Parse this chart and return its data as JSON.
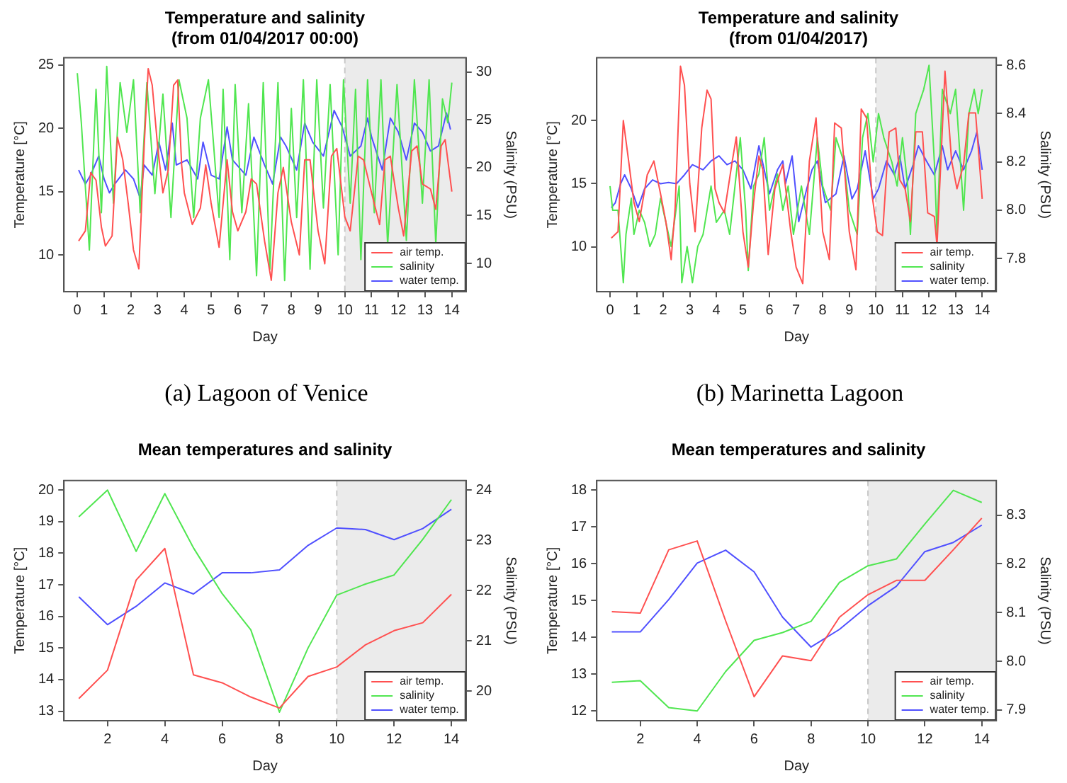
{
  "chart_data": [
    {
      "type": "line",
      "title": "Temperature and salinity",
      "subtitle": "(from 01/04/2017 00:00)",
      "xlabel": "Day",
      "ylabel": "Temperature [°C]",
      "y2label": "Salinity (PSU)",
      "xlim": [
        -0.5,
        14.53
      ],
      "xticks": [
        0,
        1,
        2,
        3,
        4,
        5,
        6,
        7,
        8,
        9,
        10,
        11,
        12,
        13,
        14
      ],
      "ylim": [
        7.1,
        25.56
      ],
      "yticks": [
        10,
        15,
        20,
        25
      ],
      "y2lim": [
        7.04,
        31.5
      ],
      "y2ticks": [
        10,
        15,
        20,
        25,
        30
      ],
      "legend": "bottom right",
      "annotations": [
        "(a) Lagoon of Venice"
      ],
      "bands": [
        {
          "axis": "x",
          "from": 10,
          "to": 14.53,
          "color": "#ebebeb"
        }
      ],
      "ref_lines": [
        {
          "axis": "x",
          "value": 10,
          "color": "#c8c8c8",
          "line_style": "dashed"
        }
      ],
      "series": [
        {
          "name": "air temp.",
          "color": "#ff5050",
          "x": [
            0.05,
            0.3,
            0.5,
            0.7,
            0.9,
            1.05,
            1.3,
            1.5,
            1.7,
            1.9,
            2.1,
            2.3,
            2.5,
            2.65,
            2.8,
            3.0,
            3.2,
            3.4,
            3.6,
            3.75,
            3.9,
            4.0,
            4.3,
            4.6,
            4.8,
            5.0,
            5.3,
            5.6,
            5.8,
            6.0,
            6.3,
            6.5,
            6.7,
            7.0,
            7.25,
            7.5,
            7.7,
            8.0,
            8.3,
            8.5,
            8.7,
            9.0,
            9.25,
            9.5,
            9.7,
            10.0,
            10.2,
            10.5,
            10.7,
            11.0,
            11.3,
            11.5,
            11.7,
            12.0,
            12.2,
            12.5,
            12.7,
            12.9,
            13.2,
            13.4,
            13.6,
            13.75,
            14.0
          ],
          "values": [
            11.1,
            11.9,
            16.5,
            15.9,
            12.2,
            10.7,
            11.5,
            19.3,
            17.5,
            14.1,
            10.4,
            8.9,
            18.6,
            24.7,
            23.4,
            18.6,
            14.9,
            16.7,
            23.4,
            23.8,
            17.1,
            14.9,
            12.4,
            13.7,
            17.1,
            14.1,
            10.6,
            17.5,
            13.4,
            11.9,
            13.4,
            16.0,
            15.6,
            11.1,
            8.0,
            14.9,
            16.9,
            12.6,
            10.0,
            17.5,
            17.5,
            11.9,
            9.3,
            17.8,
            18.4,
            13.0,
            11.9,
            17.8,
            17.5,
            14.9,
            12.4,
            17.5,
            17.8,
            13.7,
            11.5,
            18.2,
            18.6,
            15.6,
            15.2,
            13.6,
            18.6,
            19.1,
            15.0
          ]
        },
        {
          "name": "salinity",
          "color": "#50e650",
          "axis": "y2",
          "x": [
            0.0,
            0.15,
            0.45,
            0.7,
            0.9,
            1.1,
            1.35,
            1.6,
            1.85,
            2.1,
            2.35,
            2.6,
            2.9,
            3.2,
            3.5,
            3.8,
            4.1,
            4.35,
            4.6,
            4.9,
            5.1,
            5.3,
            5.45,
            5.7,
            5.9,
            6.15,
            6.4,
            6.7,
            6.95,
            7.2,
            7.5,
            7.75,
            8.0,
            8.2,
            8.45,
            8.7,
            8.95,
            9.2,
            9.45,
            9.75,
            9.95,
            10.2,
            10.4,
            10.6,
            10.85,
            11.1,
            11.35,
            11.6,
            11.95,
            12.3,
            12.6,
            12.9,
            13.15,
            13.4,
            13.65,
            13.85,
            14.0
          ],
          "values": [
            29.9,
            24.7,
            11.4,
            28.2,
            15.3,
            30.6,
            16.3,
            28.9,
            23.7,
            29.2,
            15.3,
            28.9,
            17.3,
            27.7,
            14.8,
            29.2,
            25.2,
            14.8,
            25.2,
            29.2,
            22.2,
            14.8,
            28.2,
            10.4,
            28.7,
            15.3,
            26.7,
            8.7,
            28.9,
            9.4,
            28.9,
            8.2,
            26.2,
            14.8,
            29.2,
            9.4,
            29.2,
            15.8,
            28.7,
            10.9,
            29.2,
            16.3,
            28.2,
            10.4,
            29.2,
            15.3,
            29.2,
            11.9,
            28.7,
            12.4,
            29.2,
            16.3,
            29.2,
            12.0,
            27.2,
            24.7,
            28.9
          ]
        },
        {
          "name": "water temp.",
          "color": "#5050ff",
          "x": [
            0.05,
            0.3,
            0.5,
            0.8,
            1.0,
            1.2,
            1.4,
            1.8,
            2.1,
            2.35,
            2.5,
            2.8,
            3.05,
            3.3,
            3.55,
            3.7,
            4.1,
            4.5,
            4.7,
            5.0,
            5.3,
            5.6,
            5.8,
            6.3,
            6.6,
            7.0,
            7.3,
            7.6,
            7.8,
            8.2,
            8.5,
            8.8,
            9.2,
            9.6,
            9.9,
            10.2,
            10.6,
            10.85,
            11.0,
            11.4,
            11.7,
            12.0,
            12.3,
            12.6,
            12.9,
            13.2,
            13.5,
            13.8,
            13.95
          ],
          "values": [
            16.7,
            15.6,
            16.3,
            17.8,
            16.0,
            14.9,
            15.6,
            16.7,
            16.0,
            14.5,
            17.1,
            16.3,
            18.9,
            16.7,
            20.4,
            17.1,
            17.5,
            16.0,
            18.9,
            16.3,
            16.0,
            20.1,
            17.5,
            16.3,
            19.3,
            17.1,
            15.6,
            19.3,
            18.6,
            16.7,
            20.4,
            18.9,
            17.8,
            21.4,
            20.1,
            17.8,
            18.6,
            20.8,
            19.3,
            16.7,
            20.8,
            19.7,
            17.5,
            20.4,
            19.7,
            18.2,
            18.6,
            21.2,
            19.9
          ]
        }
      ]
    },
    {
      "type": "line",
      "title": "Temperature and salinity",
      "subtitle": "(from 01/04/2017)",
      "xlabel": "Day",
      "ylabel": "Temperature [°C]",
      "y2label": "Salinity (PSU)",
      "xlim": [
        -0.5,
        14.53
      ],
      "xticks": [
        0,
        1,
        2,
        3,
        4,
        5,
        6,
        7,
        8,
        9,
        10,
        11,
        12,
        13,
        14
      ],
      "ylim": [
        6.46,
        24.96
      ],
      "yticks": [
        10,
        15,
        20
      ],
      "y2lim": [
        7.663,
        8.631
      ],
      "y2ticks": [
        7.8,
        {
          "value": 8,
          "label": "8.0"
        },
        8.2,
        8.4,
        8.6
      ],
      "legend": "bottom right",
      "annotations": [
        "(b) Marinetta Lagoon"
      ],
      "bands": [
        {
          "axis": "x",
          "from": 10,
          "to": 14.53,
          "color": "#ebebeb"
        }
      ],
      "ref_lines": [
        {
          "axis": "x",
          "value": 10,
          "color": "#c8c8c8",
          "line_style": "dashed"
        }
      ],
      "series": [
        {
          "name": "air temp.",
          "color": "#ff5050",
          "x": [
            0.05,
            0.3,
            0.5,
            0.7,
            0.9,
            1.1,
            1.4,
            1.65,
            1.9,
            2.1,
            2.3,
            2.45,
            2.65,
            2.8,
            3.0,
            3.2,
            3.45,
            3.65,
            3.8,
            3.95,
            4.1,
            4.3,
            4.6,
            4.75,
            5.0,
            5.2,
            5.4,
            5.6,
            5.75,
            5.95,
            6.2,
            6.5,
            6.8,
            7.0,
            7.25,
            7.5,
            7.75,
            8.0,
            8.25,
            8.45,
            8.7,
            9.0,
            9.25,
            9.45,
            9.65,
            9.85,
            10.05,
            10.25,
            10.5,
            10.75,
            10.9,
            11.1,
            11.3,
            11.5,
            11.75,
            11.95,
            12.2,
            12.3,
            12.6,
            12.85,
            13.05,
            13.3,
            13.5,
            13.75,
            14.0
          ],
          "values": [
            10.7,
            11.2,
            20.0,
            16.8,
            13.5,
            12.0,
            15.7,
            16.8,
            14.2,
            12.0,
            9.0,
            13.1,
            24.3,
            22.8,
            15.0,
            11.2,
            19.4,
            22.4,
            21.7,
            14.6,
            13.5,
            12.7,
            16.8,
            18.7,
            11.2,
            8.4,
            13.5,
            17.2,
            16.1,
            9.4,
            14.6,
            16.5,
            11.2,
            8.4,
            7.1,
            16.8,
            20.2,
            11.2,
            9.0,
            19.8,
            19.4,
            11.2,
            8.2,
            20.9,
            20.2,
            14.2,
            11.2,
            10.9,
            19.1,
            19.4,
            15.3,
            14.6,
            12.0,
            19.1,
            19.1,
            12.7,
            12.4,
            10.1,
            23.9,
            16.8,
            14.6,
            16.5,
            20.6,
            20.6,
            13.8
          ]
        },
        {
          "name": "salinity",
          "color": "#50e650",
          "axis": "y2",
          "x": [
            0.0,
            0.1,
            0.3,
            0.4,
            0.5,
            0.6,
            0.8,
            0.9,
            1.1,
            1.3,
            1.5,
            1.7,
            1.9,
            2.1,
            2.3,
            2.6,
            2.7,
            2.9,
            3.1,
            3.3,
            3.5,
            3.8,
            4.0,
            4.3,
            4.5,
            4.7,
            4.9,
            5.1,
            5.2,
            5.4,
            5.6,
            5.8,
            6.0,
            6.3,
            6.5,
            6.7,
            6.9,
            7.2,
            7.5,
            7.8,
            8.0,
            8.3,
            8.5,
            8.8,
            9.0,
            9.3,
            9.5,
            9.7,
            9.9,
            10.1,
            10.3,
            10.6,
            10.8,
            11.0,
            11.2,
            11.3,
            11.5,
            11.8,
            12.0,
            12.2,
            12.3,
            12.5,
            12.8,
            13.0,
            13.3,
            13.5,
            13.7,
            13.85,
            14.0
          ],
          "values": [
            8.1,
            8.0,
            8.0,
            7.85,
            7.7,
            7.9,
            8.05,
            7.9,
            8.0,
            7.95,
            7.85,
            7.9,
            8.05,
            7.95,
            7.85,
            8.1,
            7.7,
            7.85,
            7.7,
            7.85,
            7.9,
            8.1,
            7.95,
            8.0,
            7.9,
            8.1,
            8.3,
            8.0,
            7.75,
            8.1,
            8.15,
            8.3,
            8.0,
            8.15,
            8.0,
            8.1,
            7.9,
            8.1,
            7.9,
            8.3,
            8.1,
            8.0,
            8.3,
            8.2,
            8.0,
            7.9,
            8.3,
            8.4,
            8.2,
            8.4,
            8.3,
            8.2,
            8.1,
            8.3,
            8.1,
            7.9,
            8.4,
            8.5,
            8.6,
            8.2,
            7.9,
            8.5,
            8.4,
            8.5,
            8.0,
            8.4,
            8.5,
            8.4,
            8.5
          ]
        },
        {
          "name": "water temp.",
          "color": "#5050ff",
          "x": [
            0.05,
            0.2,
            0.4,
            0.55,
            0.8,
            1.05,
            1.3,
            1.6,
            1.9,
            2.2,
            2.5,
            2.8,
            3.1,
            3.5,
            3.8,
            4.1,
            4.4,
            4.7,
            5.0,
            5.3,
            5.6,
            5.8,
            6.0,
            6.3,
            6.5,
            6.6,
            6.85,
            7.1,
            7.4,
            7.6,
            7.8,
            8.1,
            8.5,
            8.8,
            9.1,
            9.3,
            9.6,
            9.9,
            10.1,
            10.4,
            10.7,
            10.9,
            11.1,
            11.4,
            11.6,
            11.9,
            12.2,
            12.5,
            12.7,
            13.0,
            13.3,
            13.6,
            13.8,
            14.0
          ],
          "values": [
            13.1,
            13.5,
            15.0,
            15.7,
            14.6,
            13.1,
            14.6,
            15.3,
            15.0,
            15.1,
            15.0,
            15.7,
            16.5,
            16.1,
            16.8,
            17.2,
            16.5,
            16.8,
            16.1,
            14.6,
            18.0,
            16.1,
            14.2,
            16.1,
            16.8,
            15.0,
            17.2,
            12.0,
            14.6,
            16.1,
            16.8,
            13.5,
            14.2,
            17.2,
            13.8,
            14.6,
            17.6,
            13.8,
            14.6,
            16.8,
            15.7,
            17.2,
            14.6,
            16.5,
            18.0,
            16.8,
            15.7,
            18.0,
            16.1,
            17.6,
            16.1,
            17.6,
            19.1,
            16.1
          ]
        }
      ]
    },
    {
      "type": "line",
      "title": "Mean temperatures and salinity",
      "xlabel": "Day",
      "ylabel": "Temperature [°C]",
      "y2label": "Salinity (PSU)",
      "xlim": [
        0.48,
        14.51
      ],
      "xticks": [
        2,
        4,
        6,
        8,
        10,
        12,
        14
      ],
      "ylim": [
        12.7,
        20.3
      ],
      "yticks": [
        13,
        14,
        15,
        16,
        17,
        18,
        19,
        20
      ],
      "y2lim": [
        19.41,
        24.19
      ],
      "y2ticks": [
        20,
        21,
        22,
        23,
        24
      ],
      "legend": "bottom right",
      "bands": [
        {
          "axis": "x",
          "from": 10,
          "to": 14.51,
          "color": "#ebebeb"
        }
      ],
      "ref_lines": [
        {
          "axis": "x",
          "value": 10,
          "color": "#c8c8c8",
          "line_style": "dashed"
        }
      ],
      "series": [
        {
          "name": "air temp.",
          "color": "#ff5050",
          "x": [
            1,
            2,
            3,
            4,
            5,
            6,
            7,
            8,
            9,
            10,
            11,
            12,
            13,
            14
          ],
          "values": [
            13.4,
            14.3,
            17.15,
            18.15,
            14.15,
            13.9,
            13.45,
            13.1,
            14.1,
            14.4,
            15.1,
            15.55,
            15.8,
            16.7
          ]
        },
        {
          "name": "salinity",
          "color": "#50e650",
          "axis": "y2",
          "x": [
            1,
            2,
            3,
            4,
            5,
            6,
            7,
            8,
            9,
            10,
            11,
            12,
            13,
            14
          ],
          "values": [
            23.47,
            24.0,
            22.78,
            23.93,
            22.85,
            21.94,
            21.22,
            19.58,
            20.86,
            21.91,
            22.13,
            22.31,
            23.02,
            23.81
          ]
        },
        {
          "name": "water temp.",
          "color": "#5050ff",
          "x": [
            1,
            2,
            3,
            4,
            5,
            6,
            7,
            8,
            9,
            10,
            11,
            12,
            13,
            14
          ],
          "values": [
            16.62,
            15.74,
            16.32,
            17.06,
            16.71,
            17.38,
            17.38,
            17.47,
            18.25,
            18.8,
            18.75,
            18.43,
            18.78,
            19.39
          ]
        }
      ]
    },
    {
      "type": "line",
      "title": "Mean temperatures and salinity",
      "xlabel": "Day",
      "ylabel": "Temperature [°C]",
      "y2label": "Salinity (PSU)",
      "xlim": [
        0.47,
        14.51
      ],
      "xticks": [
        2,
        4,
        6,
        8,
        10,
        12,
        14
      ],
      "ylim": [
        11.74,
        18.26
      ],
      "yticks": [
        12,
        13,
        14,
        15,
        16,
        17,
        18
      ],
      "y2lim": [
        7.878,
        8.371
      ],
      "y2ticks": [
        7.9,
        {
          "value": 8,
          "label": "8.0"
        },
        8.1,
        8.2,
        8.3
      ],
      "legend": "bottom right",
      "bands": [
        {
          "axis": "x",
          "from": 10,
          "to": 14.51,
          "color": "#ebebeb"
        }
      ],
      "ref_lines": [
        {
          "axis": "x",
          "value": 10,
          "color": "#c8c8c8",
          "line_style": "dashed"
        }
      ],
      "series": [
        {
          "name": "air temp.",
          "color": "#ff5050",
          "x": [
            1,
            2,
            3,
            4,
            5,
            6,
            7,
            8,
            9,
            10,
            11,
            12,
            13,
            14
          ],
          "values": [
            14.7,
            14.66,
            16.38,
            16.62,
            14.45,
            12.39,
            13.5,
            13.37,
            14.55,
            15.16,
            15.55,
            15.55,
            16.38,
            17.24
          ]
        },
        {
          "name": "salinity",
          "color": "#50e650",
          "axis": "y2",
          "x": [
            1,
            2,
            3,
            4,
            5,
            6,
            7,
            8,
            9,
            10,
            11,
            12,
            13,
            14
          ],
          "values": [
            7.957,
            7.96,
            7.905,
            7.898,
            7.979,
            8.043,
            8.059,
            8.082,
            8.162,
            8.196,
            8.21,
            8.282,
            8.351,
            8.326
          ]
        },
        {
          "name": "water temp.",
          "color": "#5050ff",
          "x": [
            1,
            2,
            3,
            4,
            5,
            6,
            7,
            8,
            9,
            10,
            11,
            12,
            13,
            14
          ],
          "values": [
            14.15,
            14.15,
            15.03,
            16.02,
            16.37,
            15.78,
            14.55,
            13.74,
            14.22,
            14.86,
            15.39,
            16.33,
            16.58,
            17.05
          ]
        }
      ]
    }
  ]
}
